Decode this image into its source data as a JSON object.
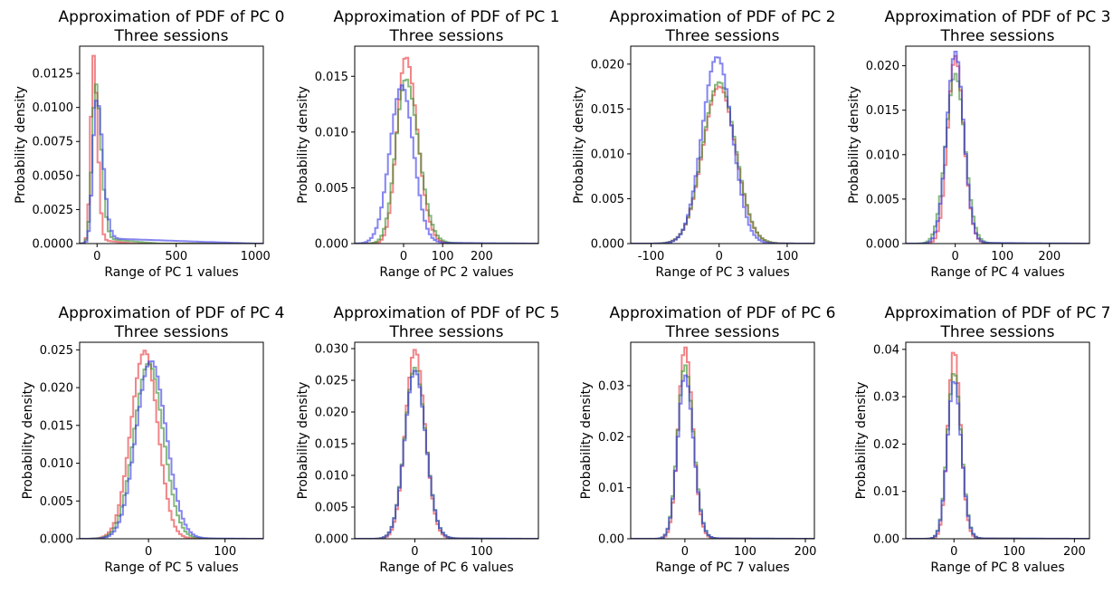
{
  "chart_data": [
    {
      "type": "histogram",
      "title": "Approximation of PDF of PC 0",
      "subtitle": "Three sessions",
      "xlabel": "Range of PC 1 values",
      "ylabel": "Probability density",
      "xlim": [
        -110,
        1050
      ],
      "ylim": [
        0,
        0.0145
      ],
      "xticks": [
        0,
        500,
        1000
      ],
      "yticks": [
        0.0,
        0.0025,
        0.005,
        0.0075,
        0.01,
        0.0125
      ],
      "ytick_labels": [
        "0.0000",
        "0.0025",
        "0.0050",
        "0.0075",
        "0.0100",
        "0.0125"
      ],
      "grid": false,
      "series": [
        {
          "color": "#e8383d",
          "peak": 0.0135,
          "center": -22,
          "width_left": 18,
          "width_right": 25,
          "tail": 0.0003,
          "tail_len": 250
        },
        {
          "color": "#3a8f2e",
          "peak": 0.0114,
          "center": -10,
          "width_left": 22,
          "width_right": 35,
          "tail": 0.0004,
          "tail_len": 400
        },
        {
          "color": "#3a3ae6",
          "peak": 0.0105,
          "center": -5,
          "width_left": 22,
          "width_right": 40,
          "tail": 0.0004,
          "tail_len": 1000
        }
      ]
    },
    {
      "type": "histogram",
      "title": "Approximation of PDF of PC 1",
      "subtitle": "Three sessions",
      "xlabel": "Range of PC 2 values",
      "ylabel": "Probability density",
      "xlim": [
        -125,
        345
      ],
      "ylim": [
        0,
        0.0177
      ],
      "xticks": [
        0,
        100,
        200
      ],
      "yticks": [
        0.0,
        0.005,
        0.01,
        0.015
      ],
      "ytick_labels": [
        "0.000",
        "0.005",
        "0.010",
        "0.015"
      ],
      "grid": false,
      "series": [
        {
          "color": "#e8383d",
          "peak": 0.0167,
          "center": 5,
          "width_left": 22,
          "width_right": 30,
          "tail": 0.0001,
          "tail_len": 150
        },
        {
          "color": "#3a8f2e",
          "peak": 0.0147,
          "center": 5,
          "width_left": 25,
          "width_right": 33,
          "tail": 0.0001,
          "tail_len": 200
        },
        {
          "color": "#3a3ae6",
          "peak": 0.0141,
          "center": -5,
          "width_left": 30,
          "width_right": 30,
          "tail": 0.0001,
          "tail_len": 330
        }
      ]
    },
    {
      "type": "histogram",
      "title": "Approximation of PDF of PC 2",
      "subtitle": "Three sessions",
      "xlabel": "Range of PC 3 values",
      "ylabel": "Probability density",
      "xlim": [
        -130,
        140
      ],
      "ylim": [
        0,
        0.022
      ],
      "xticks": [
        -100,
        0,
        100
      ],
      "yticks": [
        0.0,
        0.005,
        0.01,
        0.015,
        0.02
      ],
      "ytick_labels": [
        "0.000",
        "0.005",
        "0.010",
        "0.015",
        "0.020"
      ],
      "grid": false,
      "series": [
        {
          "color": "#e8383d",
          "peak": 0.0175,
          "center": 0,
          "width_left": 24,
          "width_right": 24,
          "tail": 5e-05,
          "tail_len": 120
        },
        {
          "color": "#3a8f2e",
          "peak": 0.018,
          "center": 0,
          "width_left": 24,
          "width_right": 24,
          "tail": 5e-05,
          "tail_len": 120
        },
        {
          "color": "#3a3ae6",
          "peak": 0.0208,
          "center": -3,
          "width_left": 22,
          "width_right": 22,
          "tail": 5e-05,
          "tail_len": 120
        }
      ]
    },
    {
      "type": "histogram",
      "title": "Approximation of PDF of PC 3",
      "subtitle": "Three sessions",
      "xlabel": "Range of PC 4 values",
      "ylabel": "Probability density",
      "xlim": [
        -105,
        285
      ],
      "ylim": [
        0,
        0.0222
      ],
      "xticks": [
        0,
        100,
        200
      ],
      "yticks": [
        0.0,
        0.005,
        0.01,
        0.015,
        0.02
      ],
      "ytick_labels": [
        "0.000",
        "0.005",
        "0.010",
        "0.015",
        "0.020"
      ],
      "grid": false,
      "series": [
        {
          "color": "#e8383d",
          "peak": 0.021,
          "center": 0,
          "width_left": 16,
          "width_right": 18,
          "tail": 0.0001,
          "tail_len": 100
        },
        {
          "color": "#3a8f2e",
          "peak": 0.019,
          "center": 0,
          "width_left": 20,
          "width_right": 20,
          "tail": 0.0001,
          "tail_len": 150
        },
        {
          "color": "#3a3ae6",
          "peak": 0.0215,
          "center": 0,
          "width_left": 18,
          "width_right": 18,
          "tail": 0.0001,
          "tail_len": 280
        }
      ]
    },
    {
      "type": "histogram",
      "title": "Approximation of PDF of PC 4",
      "subtitle": "Three sessions",
      "xlabel": "Range of PC 5 values",
      "ylabel": "Probability density",
      "xlim": [
        -90,
        150
      ],
      "ylim": [
        0,
        0.026
      ],
      "xticks": [
        0,
        100
      ],
      "yticks": [
        0.0,
        0.005,
        0.01,
        0.015,
        0.02,
        0.025
      ],
      "ytick_labels": [
        "0.000",
        "0.005",
        "0.010",
        "0.015",
        "0.020",
        "0.025"
      ],
      "grid": false,
      "series": [
        {
          "color": "#e8383d",
          "peak": 0.0248,
          "center": -5,
          "width_left": 18,
          "width_right": 17,
          "tail": 0.0001,
          "tail_len": 80
        },
        {
          "color": "#3a8f2e",
          "peak": 0.0232,
          "center": 0,
          "width_left": 19,
          "width_right": 19,
          "tail": 0.0001,
          "tail_len": 100
        },
        {
          "color": "#3a3ae6",
          "peak": 0.0235,
          "center": 3,
          "width_left": 19,
          "width_right": 20,
          "tail": 0.0001,
          "tail_len": 130
        }
      ]
    },
    {
      "type": "histogram",
      "title": "Approximation of PDF of PC 5",
      "subtitle": "Three sessions",
      "xlabel": "Range of PC 6 values",
      "ylabel": "Probability density",
      "xlim": [
        -90,
        185
      ],
      "ylim": [
        0,
        0.031
      ],
      "xticks": [
        0,
        100
      ],
      "yticks": [
        0.0,
        0.005,
        0.01,
        0.015,
        0.02,
        0.025,
        0.03
      ],
      "ytick_labels": [
        "0.000",
        "0.005",
        "0.010",
        "0.015",
        "0.020",
        "0.025",
        "0.030"
      ],
      "grid": false,
      "series": [
        {
          "color": "#e8383d",
          "peak": 0.0298,
          "center": 0,
          "width_left": 14,
          "width_right": 15,
          "tail": 0.0001,
          "tail_len": 100
        },
        {
          "color": "#3a8f2e",
          "peak": 0.027,
          "center": 0,
          "width_left": 15,
          "width_right": 16,
          "tail": 0.0001,
          "tail_len": 120
        },
        {
          "color": "#3a3ae6",
          "peak": 0.0265,
          "center": 0,
          "width_left": 15,
          "width_right": 16,
          "tail": 0.0001,
          "tail_len": 170
        }
      ]
    },
    {
      "type": "histogram",
      "title": "Approximation of PDF of PC 6",
      "subtitle": "Three sessions",
      "xlabel": "Range of PC 7 values",
      "ylabel": "Probability density",
      "xlim": [
        -90,
        215
      ],
      "ylim": [
        0,
        0.0385
      ],
      "xticks": [
        0,
        100,
        200
      ],
      "yticks": [
        0.0,
        0.01,
        0.02,
        0.03
      ],
      "ytick_labels": [
        "0.00",
        "0.01",
        "0.02",
        "0.03"
      ],
      "grid": false,
      "series": [
        {
          "color": "#e8383d",
          "peak": 0.0375,
          "center": 0,
          "width_left": 11,
          "width_right": 13,
          "tail": 0.0001,
          "tail_len": 120
        },
        {
          "color": "#3a8f2e",
          "peak": 0.034,
          "center": 0,
          "width_left": 12,
          "width_right": 14,
          "tail": 0.0001,
          "tail_len": 150
        },
        {
          "color": "#3a3ae6",
          "peak": 0.032,
          "center": 0,
          "width_left": 12,
          "width_right": 14,
          "tail": 0.0001,
          "tail_len": 200
        }
      ]
    },
    {
      "type": "histogram",
      "title": "Approximation of PDF of PC 7",
      "subtitle": "Three sessions",
      "xlabel": "Range of PC 8 values",
      "ylabel": "Probability density",
      "xlim": [
        -80,
        225
      ],
      "ylim": [
        0,
        0.0415
      ],
      "xticks": [
        0,
        100,
        200
      ],
      "yticks": [
        0.0,
        0.01,
        0.02,
        0.03,
        0.04
      ],
      "ytick_labels": [
        "0.00",
        "0.01",
        "0.02",
        "0.03",
        "0.04"
      ],
      "grid": false,
      "series": [
        {
          "color": "#e8383d",
          "peak": 0.0398,
          "center": 0,
          "width_left": 10,
          "width_right": 11,
          "tail": 0.0001,
          "tail_len": 120
        },
        {
          "color": "#3a8f2e",
          "peak": 0.0352,
          "center": 0,
          "width_left": 11,
          "width_right": 12,
          "tail": 0.0001,
          "tail_len": 150
        },
        {
          "color": "#3a3ae6",
          "peak": 0.0335,
          "center": 0,
          "width_left": 11,
          "width_right": 12,
          "tail": 0.0001,
          "tail_len": 210
        }
      ]
    }
  ]
}
